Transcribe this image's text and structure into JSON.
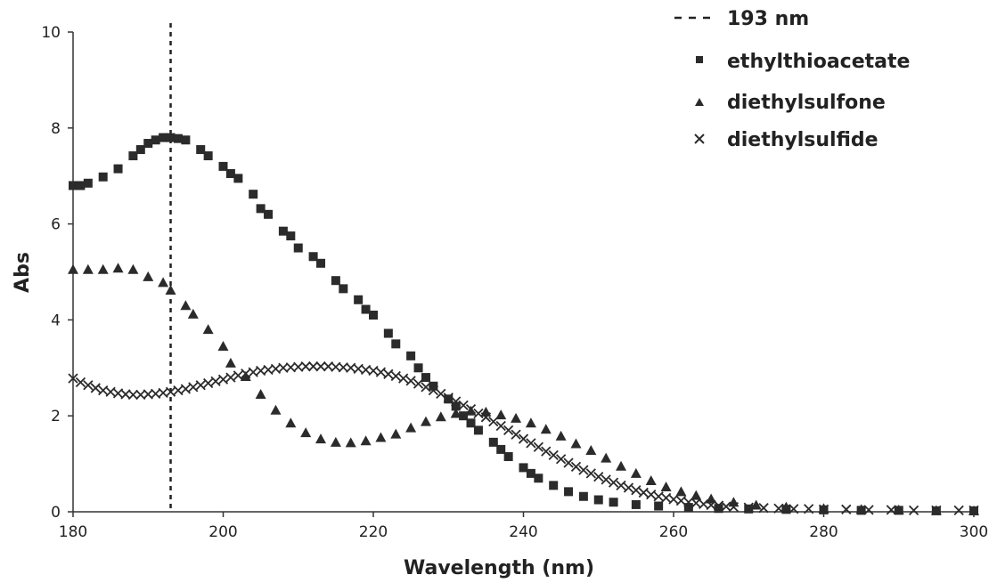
{
  "chart_data": {
    "type": "scatter",
    "title": "",
    "xlabel": "Wavelength (nm)",
    "ylabel": "Abs",
    "xlim": [
      180,
      300
    ],
    "ylim": [
      0,
      10
    ],
    "x_ticks": [
      "180",
      "200",
      "220",
      "240",
      "260",
      "280",
      "300"
    ],
    "y_ticks": [
      "0",
      "2",
      "4",
      "6",
      "8",
      "10"
    ],
    "grid": false,
    "legend_position": "top-right",
    "reference_line": {
      "name": "193 nm",
      "x": 193,
      "style": "dashed"
    },
    "series": [
      {
        "name": "ethylthioacetate",
        "marker": "square",
        "color": "#2b2b2b",
        "points": [
          [
            180,
            6.8
          ],
          [
            181,
            6.8
          ],
          [
            182,
            6.85
          ],
          [
            184,
            6.98
          ],
          [
            186,
            7.15
          ],
          [
            188,
            7.42
          ],
          [
            189,
            7.55
          ],
          [
            190,
            7.68
          ],
          [
            191,
            7.75
          ],
          [
            192,
            7.8
          ],
          [
            193,
            7.8
          ],
          [
            194,
            7.78
          ],
          [
            195,
            7.75
          ],
          [
            197,
            7.55
          ],
          [
            198,
            7.42
          ],
          [
            200,
            7.2
          ],
          [
            201,
            7.05
          ],
          [
            202,
            6.95
          ],
          [
            204,
            6.62
          ],
          [
            205,
            6.32
          ],
          [
            206,
            6.2
          ],
          [
            208,
            5.85
          ],
          [
            209,
            5.75
          ],
          [
            210,
            5.5
          ],
          [
            212,
            5.32
          ],
          [
            213,
            5.18
          ],
          [
            215,
            4.82
          ],
          [
            216,
            4.65
          ],
          [
            218,
            4.42
          ],
          [
            219,
            4.22
          ],
          [
            220,
            4.1
          ],
          [
            222,
            3.72
          ],
          [
            223,
            3.5
          ],
          [
            225,
            3.25
          ],
          [
            226,
            3.0
          ],
          [
            227,
            2.8
          ],
          [
            228,
            2.62
          ],
          [
            230,
            2.35
          ],
          [
            231,
            2.2
          ],
          [
            232,
            2.0
          ],
          [
            233,
            1.85
          ],
          [
            234,
            1.7
          ],
          [
            236,
            1.45
          ],
          [
            237,
            1.3
          ],
          [
            238,
            1.15
          ],
          [
            240,
            0.92
          ],
          [
            241,
            0.8
          ],
          [
            242,
            0.7
          ],
          [
            244,
            0.55
          ],
          [
            246,
            0.42
          ],
          [
            248,
            0.32
          ],
          [
            250,
            0.25
          ],
          [
            252,
            0.2
          ],
          [
            255,
            0.15
          ],
          [
            258,
            0.12
          ],
          [
            262,
            0.09
          ],
          [
            266,
            0.07
          ],
          [
            270,
            0.06
          ],
          [
            275,
            0.05
          ],
          [
            280,
            0.04
          ],
          [
            285,
            0.03
          ],
          [
            290,
            0.03
          ],
          [
            295,
            0.02
          ],
          [
            300,
            0.02
          ]
        ]
      },
      {
        "name": "diethylsulfone",
        "marker": "triangle",
        "color": "#2b2b2b",
        "points": [
          [
            180,
            5.05
          ],
          [
            182,
            5.05
          ],
          [
            184,
            5.05
          ],
          [
            186,
            5.08
          ],
          [
            188,
            5.05
          ],
          [
            190,
            4.9
          ],
          [
            192,
            4.78
          ],
          [
            193,
            4.62
          ],
          [
            195,
            4.3
          ],
          [
            196,
            4.12
          ],
          [
            198,
            3.8
          ],
          [
            200,
            3.45
          ],
          [
            201,
            3.1
          ],
          [
            203,
            2.82
          ],
          [
            205,
            2.45
          ],
          [
            207,
            2.12
          ],
          [
            209,
            1.85
          ],
          [
            211,
            1.65
          ],
          [
            213,
            1.52
          ],
          [
            215,
            1.45
          ],
          [
            217,
            1.44
          ],
          [
            219,
            1.48
          ],
          [
            221,
            1.55
          ],
          [
            223,
            1.62
          ],
          [
            225,
            1.75
          ],
          [
            227,
            1.88
          ],
          [
            229,
            1.98
          ],
          [
            231,
            2.05
          ],
          [
            233,
            2.1
          ],
          [
            235,
            2.08
          ],
          [
            237,
            2.02
          ],
          [
            239,
            1.95
          ],
          [
            241,
            1.85
          ],
          [
            243,
            1.72
          ],
          [
            245,
            1.58
          ],
          [
            247,
            1.42
          ],
          [
            249,
            1.28
          ],
          [
            251,
            1.12
          ],
          [
            253,
            0.95
          ],
          [
            255,
            0.8
          ],
          [
            257,
            0.65
          ],
          [
            259,
            0.52
          ],
          [
            261,
            0.42
          ],
          [
            263,
            0.34
          ],
          [
            265,
            0.27
          ],
          [
            268,
            0.2
          ],
          [
            271,
            0.14
          ],
          [
            275,
            0.1
          ],
          [
            280,
            0.07
          ],
          [
            285,
            0.05
          ],
          [
            290,
            0.04
          ],
          [
            295,
            0.03
          ],
          [
            300,
            0.02
          ]
        ]
      },
      {
        "name": "diethylsulfide",
        "marker": "x",
        "color": "#2b2b2b",
        "points": [
          [
            180,
            2.78
          ],
          [
            181,
            2.7
          ],
          [
            182,
            2.64
          ],
          [
            183,
            2.58
          ],
          [
            184,
            2.53
          ],
          [
            185,
            2.5
          ],
          [
            186,
            2.47
          ],
          [
            187,
            2.45
          ],
          [
            188,
            2.44
          ],
          [
            189,
            2.44
          ],
          [
            190,
            2.45
          ],
          [
            191,
            2.46
          ],
          [
            192,
            2.48
          ],
          [
            193,
            2.5
          ],
          [
            194,
            2.53
          ],
          [
            195,
            2.56
          ],
          [
            196,
            2.6
          ],
          [
            197,
            2.64
          ],
          [
            198,
            2.68
          ],
          [
            199,
            2.72
          ],
          [
            200,
            2.76
          ],
          [
            201,
            2.8
          ],
          [
            202,
            2.84
          ],
          [
            203,
            2.88
          ],
          [
            204,
            2.91
          ],
          [
            205,
            2.94
          ],
          [
            206,
            2.96
          ],
          [
            207,
            2.98
          ],
          [
            208,
            3.0
          ],
          [
            209,
            3.01
          ],
          [
            210,
            3.02
          ],
          [
            211,
            3.03
          ],
          [
            212,
            3.03
          ],
          [
            213,
            3.03
          ],
          [
            214,
            3.03
          ],
          [
            215,
            3.02
          ],
          [
            216,
            3.01
          ],
          [
            217,
            3.0
          ],
          [
            218,
            2.98
          ],
          [
            219,
            2.96
          ],
          [
            220,
            2.94
          ],
          [
            221,
            2.91
          ],
          [
            222,
            2.87
          ],
          [
            223,
            2.83
          ],
          [
            224,
            2.78
          ],
          [
            225,
            2.73
          ],
          [
            226,
            2.67
          ],
          [
            227,
            2.6
          ],
          [
            228,
            2.53
          ],
          [
            229,
            2.46
          ],
          [
            230,
            2.38
          ],
          [
            231,
            2.3
          ],
          [
            232,
            2.22
          ],
          [
            233,
            2.14
          ],
          [
            234,
            2.05
          ],
          [
            235,
            1.97
          ],
          [
            236,
            1.88
          ],
          [
            237,
            1.79
          ],
          [
            238,
            1.7
          ],
          [
            239,
            1.61
          ],
          [
            240,
            1.52
          ],
          [
            241,
            1.43
          ],
          [
            242,
            1.35
          ],
          [
            243,
            1.26
          ],
          [
            244,
            1.18
          ],
          [
            245,
            1.1
          ],
          [
            246,
            1.02
          ],
          [
            247,
            0.94
          ],
          [
            248,
            0.87
          ],
          [
            249,
            0.8
          ],
          [
            250,
            0.73
          ],
          [
            251,
            0.67
          ],
          [
            252,
            0.61
          ],
          [
            253,
            0.55
          ],
          [
            254,
            0.5
          ],
          [
            255,
            0.45
          ],
          [
            256,
            0.4
          ],
          [
            257,
            0.36
          ],
          [
            258,
            0.32
          ],
          [
            259,
            0.29
          ],
          [
            260,
            0.26
          ],
          [
            261,
            0.23
          ],
          [
            262,
            0.2
          ],
          [
            263,
            0.18
          ],
          [
            264,
            0.16
          ],
          [
            265,
            0.14
          ],
          [
            266,
            0.13
          ],
          [
            267,
            0.11
          ],
          [
            268,
            0.1
          ],
          [
            270,
            0.09
          ],
          [
            272,
            0.08
          ],
          [
            274,
            0.07
          ],
          [
            276,
            0.06
          ],
          [
            278,
            0.06
          ],
          [
            280,
            0.05
          ],
          [
            283,
            0.05
          ],
          [
            286,
            0.04
          ],
          [
            289,
            0.04
          ],
          [
            292,
            0.03
          ],
          [
            295,
            0.03
          ],
          [
            298,
            0.03
          ],
          [
            300,
            0.03
          ]
        ]
      }
    ]
  }
}
